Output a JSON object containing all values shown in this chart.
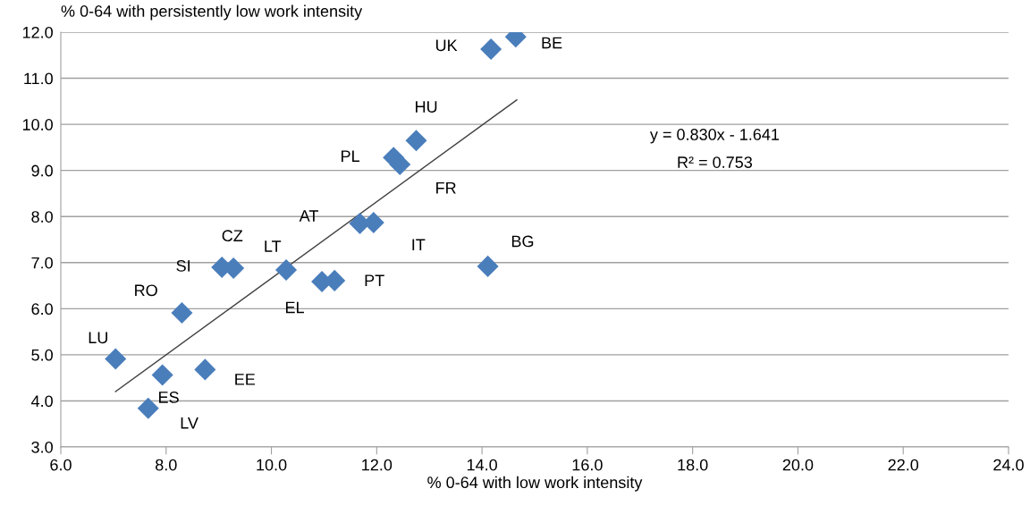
{
  "chart_data": {
    "type": "scatter",
    "xlabel": "% 0-64 with low work intensity",
    "ylabel": "% 0-64 with persistently low work intensity",
    "xlim": [
      6.0,
      24.0
    ],
    "xticks": [
      {
        "value": 6,
        "label": "6.0"
      },
      {
        "value": 8,
        "label": "8.0"
      },
      {
        "value": 10,
        "label": "10.0"
      },
      {
        "value": 12,
        "label": "12.0"
      },
      {
        "value": 14,
        "label": "14.0"
      },
      {
        "value": 16,
        "label": "16.0"
      },
      {
        "value": 18,
        "label": "18.0"
      },
      {
        "value": 20,
        "label": "20.0"
      },
      {
        "value": 22,
        "label": "22.0"
      },
      {
        "value": 24,
        "label": "24.0"
      }
    ],
    "ylim": [
      3.0,
      12.0
    ],
    "yticks": [
      {
        "value": 3,
        "label": "3.0"
      },
      {
        "value": 4,
        "label": "4.0"
      },
      {
        "value": 5,
        "label": "5.0"
      },
      {
        "value": 6,
        "label": "6.0"
      },
      {
        "value": 7,
        "label": "7.0"
      },
      {
        "value": 8,
        "label": "8.0"
      },
      {
        "value": 9,
        "label": "9.0"
      },
      {
        "value": 10,
        "label": "10.0"
      },
      {
        "value": 11,
        "label": "11.0"
      },
      {
        "value": 12,
        "label": "12.0"
      }
    ],
    "grid": "y",
    "marker": "diamond",
    "series": [
      {
        "color": "#4a7ebb",
        "x": [
          14.64,
          14.17,
          12.75,
          12.32,
          12.44,
          11.68,
          11.94,
          14.11,
          9.06,
          9.28,
          10.28,
          10.96,
          11.2,
          8.3,
          7.04,
          7.93,
          8.74,
          7.66
        ],
        "values": [
          11.9,
          11.63,
          9.65,
          9.28,
          9.13,
          7.85,
          7.87,
          6.92,
          6.9,
          6.88,
          6.84,
          6.59,
          6.61,
          5.91,
          4.91,
          4.56,
          4.68,
          3.84
        ]
      },
      {
        "type": "line",
        "color": "#404040",
        "marker": "none",
        "x": [
          7.04,
          14.66
        ],
        "values": [
          4.2,
          10.53
        ]
      }
    ],
    "annotations": [
      {
        "text": "BE",
        "x": 14.64,
        "y": 11.9
      },
      {
        "text": "UK",
        "x": 14.17,
        "y": 11.63
      },
      {
        "text": "HU",
        "x": 12.75,
        "y": 9.65
      },
      {
        "text": "PL",
        "x": 12.32,
        "y": 9.28
      },
      {
        "text": "FR",
        "x": 12.44,
        "y": 9.13
      },
      {
        "text": "AT",
        "x": 11.68,
        "y": 7.85
      },
      {
        "text": "IT",
        "x": 11.94,
        "y": 7.87
      },
      {
        "text": "BG",
        "x": 14.11,
        "y": 6.92
      },
      {
        "text": "SI",
        "x": 9.06,
        "y": 6.9
      },
      {
        "text": "CZ",
        "x": 9.28,
        "y": 6.88
      },
      {
        "text": "LT",
        "x": 10.28,
        "y": 6.84
      },
      {
        "text": "EL",
        "x": 10.96,
        "y": 6.59
      },
      {
        "text": "PT",
        "x": 11.2,
        "y": 6.61
      },
      {
        "text": "RO",
        "x": 8.3,
        "y": 5.91
      },
      {
        "text": "LU",
        "x": 7.04,
        "y": 4.91
      },
      {
        "text": "ES",
        "x": 7.93,
        "y": 4.56
      },
      {
        "text": "EE",
        "x": 8.74,
        "y": 4.68
      },
      {
        "text": "LV",
        "x": 7.66,
        "y": 3.84
      },
      "y = 0.830x - 1.641",
      "R² = 0.753"
    ]
  }
}
